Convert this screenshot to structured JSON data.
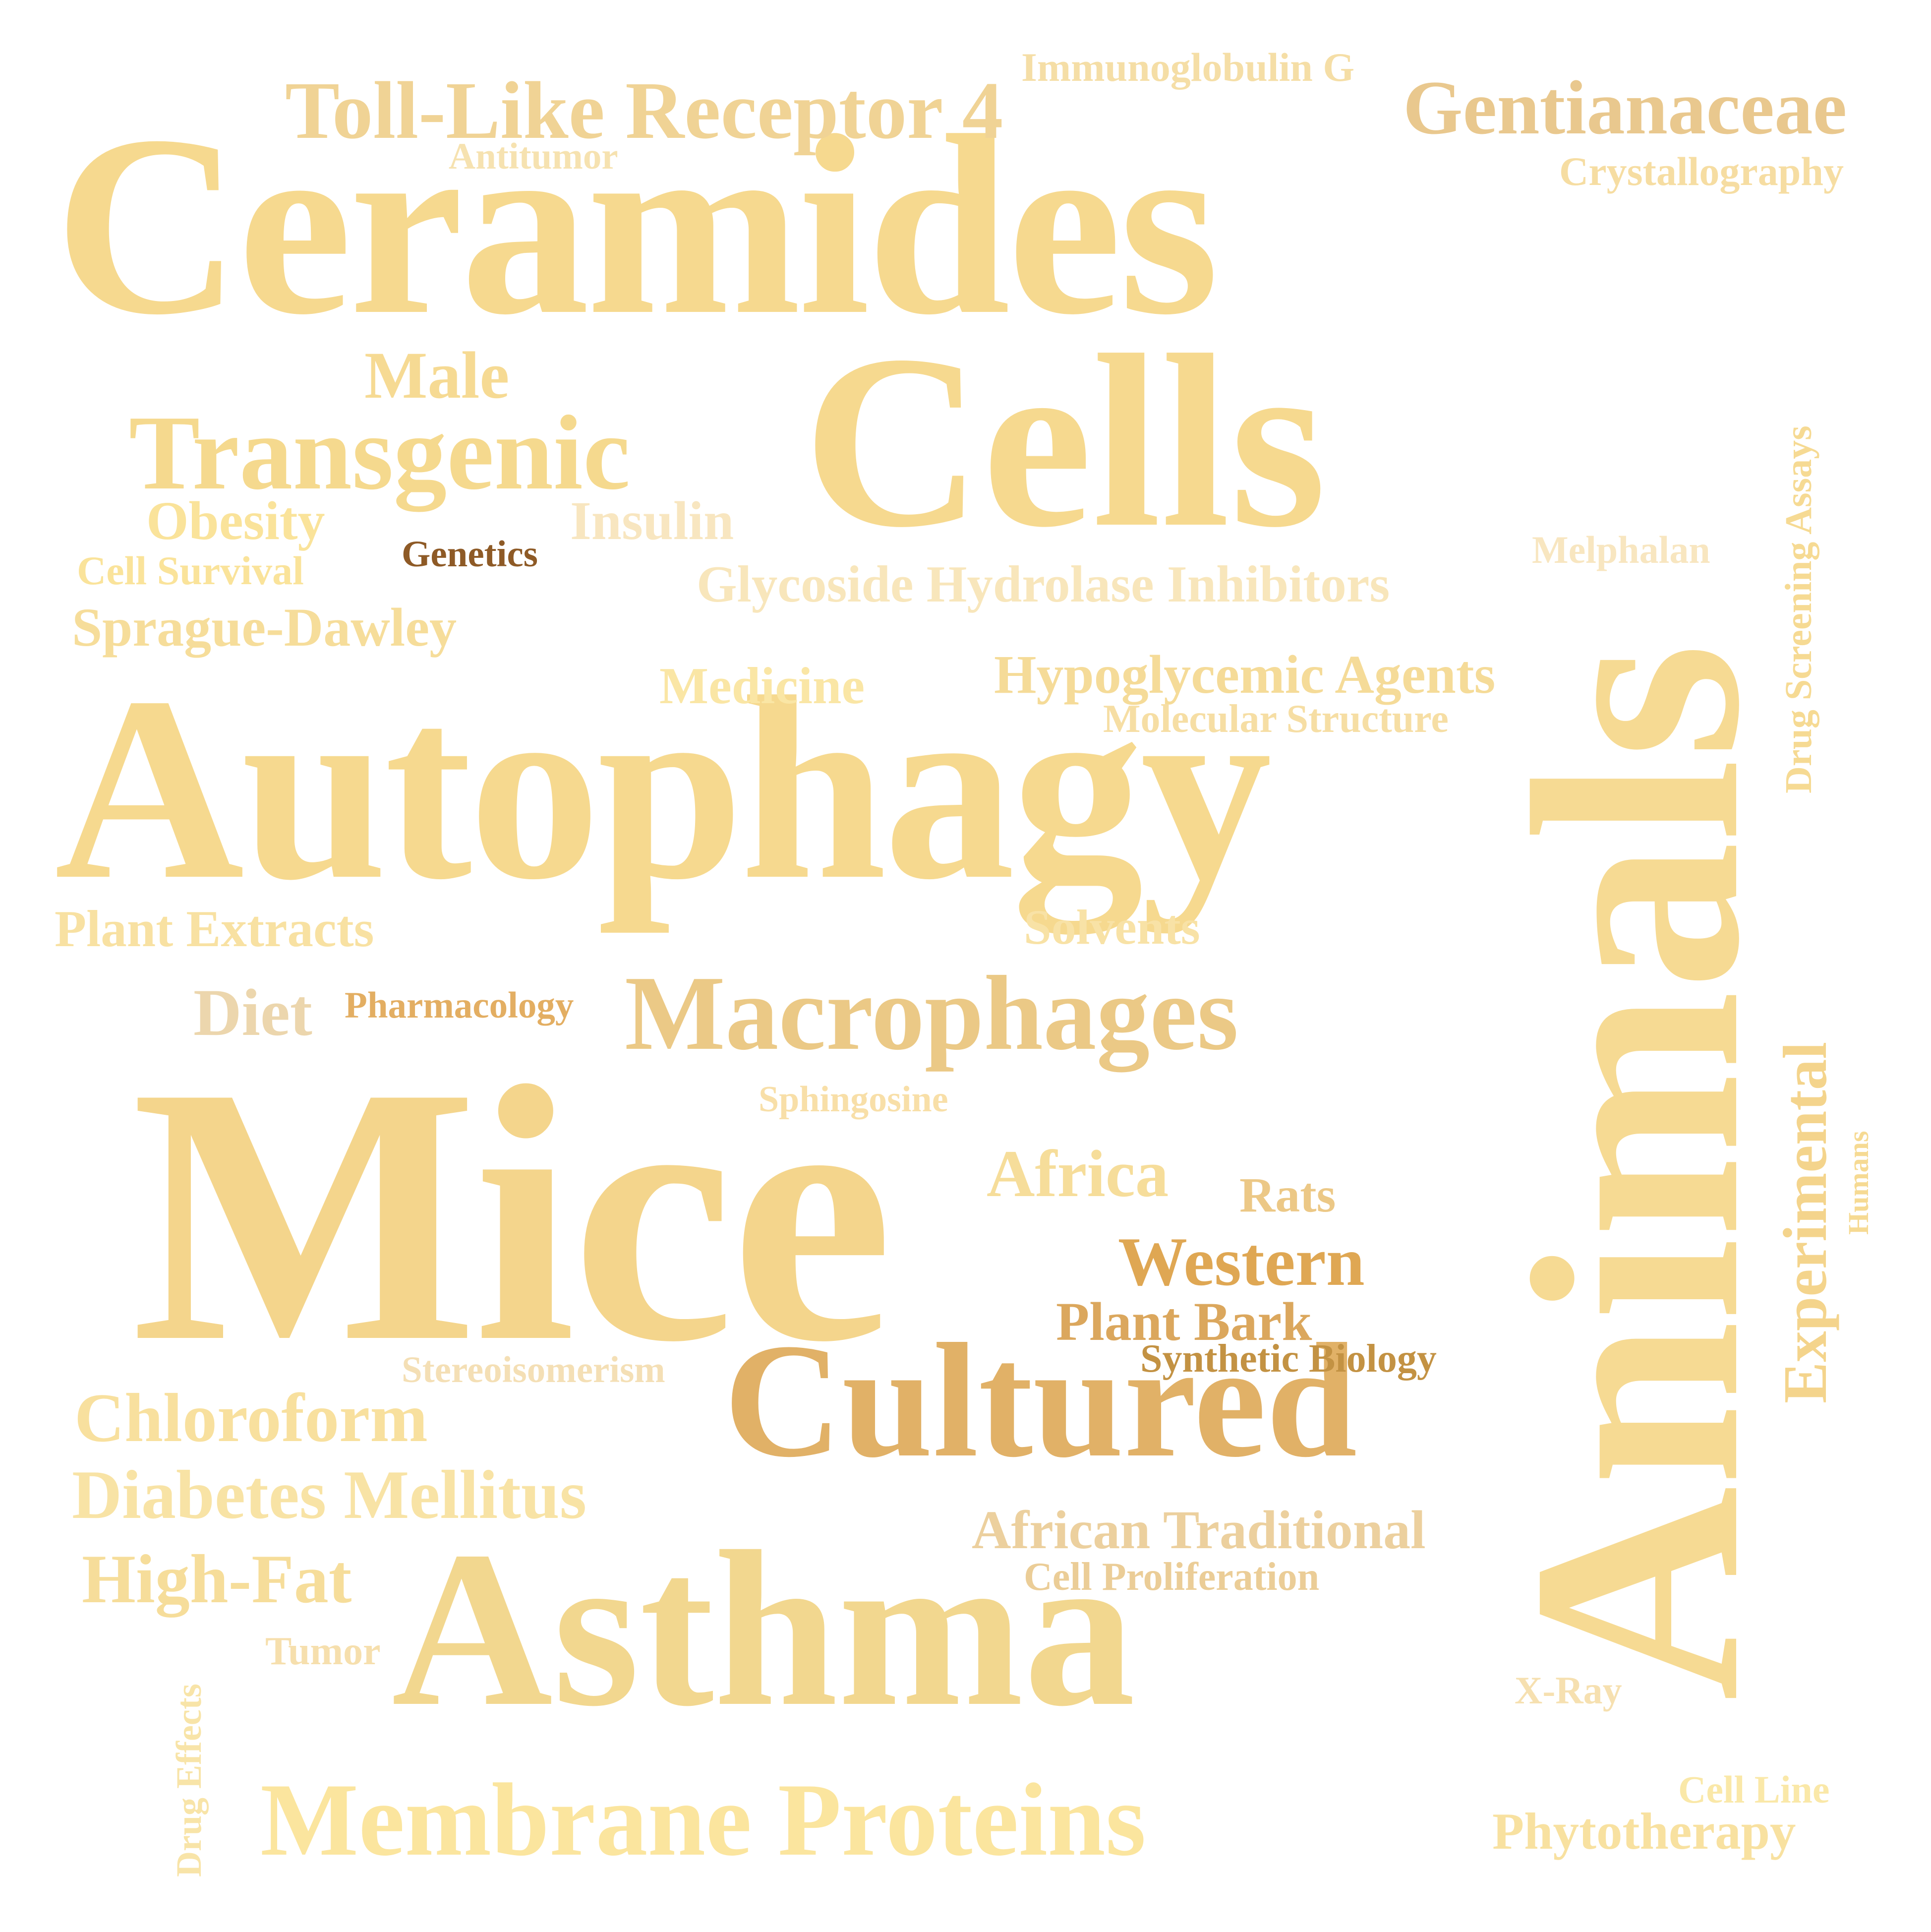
{
  "words": {
    "ceramides": {
      "text": "Ceramides",
      "color": "#f6d98f"
    },
    "cells": {
      "text": "Cells",
      "color": "#f6d98f"
    },
    "autophagy": {
      "text": "Autophagy",
      "color": "#f6d98f"
    },
    "mice": {
      "text": "Mice",
      "color": "#f4d58c"
    },
    "asthma": {
      "text": "Asthma",
      "color": "#f2d78f"
    },
    "cultured": {
      "text": "Cultured",
      "color": "#e1b167"
    },
    "macrophages": {
      "text": "Macrophages",
      "color": "#ebc986"
    },
    "animals": {
      "text": "Animals",
      "color": "#f6da93"
    },
    "experimental": {
      "text": "Experimental",
      "color": "#f4d48c"
    },
    "drugscreen": {
      "text": "Drug Screening Assays",
      "color": "#f6da93"
    },
    "humans": {
      "text": "Humans",
      "color": "#f6da93"
    },
    "drugeffects": {
      "text": "Drug Effects",
      "color": "#f8e4a8"
    },
    "tlr4": {
      "text": "Toll-Like Receptor 4",
      "color": "#f0d395"
    },
    "antitumor": {
      "text": "Antitumor",
      "color": "#f6e2b0"
    },
    "igg": {
      "text": "Immunoglobulin G",
      "color": "#f5dea6"
    },
    "gentian": {
      "text": "Gentianaceae",
      "color": "#e9c88e"
    },
    "crystal": {
      "text": "Crystallography",
      "color": "#f6dda2"
    },
    "male": {
      "text": "Male",
      "color": "#f6da93"
    },
    "transgenic": {
      "text": "Transgenic",
      "color": "#f5d98e"
    },
    "obesity": {
      "text": "Obesity",
      "color": "#fae39a"
    },
    "insulin": {
      "text": "Insulin",
      "color": "#f8e6c0"
    },
    "cellsurv": {
      "text": "Cell Survival",
      "color": "#fae39a"
    },
    "genetics": {
      "text": "Genetics",
      "color": "#8e5a26"
    },
    "melphalan": {
      "text": "Melphalan",
      "color": "#f8e6c0"
    },
    "glycoside": {
      "text": "Glycoside Hydrolase Inhibitors",
      "color": "#f8e6bb"
    },
    "sprague": {
      "text": "Sprague-Dawley",
      "color": "#f6dd9a"
    },
    "medicine": {
      "text": "Medicine",
      "color": "#fae6a5"
    },
    "hypogly": {
      "text": "Hypoglycemic Agents",
      "color": "#f5db98"
    },
    "molstruct": {
      "text": "Molecular Structure",
      "color": "#f6dea4"
    },
    "plantext": {
      "text": "Plant Extracts",
      "color": "#f8e1a2"
    },
    "solvents": {
      "text": "Solvents",
      "color": "#f8e2a6"
    },
    "diet": {
      "text": "Diet",
      "color": "#ecd6ad"
    },
    "pharma": {
      "text": "Pharmacology",
      "color": "#e3ae62"
    },
    "sphingo": {
      "text": "Sphingosine",
      "color": "#f8dfa8"
    },
    "africa": {
      "text": "Africa",
      "color": "#f6dd9a"
    },
    "rats": {
      "text": "Rats",
      "color": "#ecc886"
    },
    "western": {
      "text": "Western",
      "color": "#dfa753"
    },
    "plantbark": {
      "text": "Plant Bark",
      "color": "#dba75d"
    },
    "synbio": {
      "text": "Synthetic Biology",
      "color": "#c39243"
    },
    "stereo": {
      "text": "Stereoisomerism",
      "color": "#f4dfb5"
    },
    "chloroform": {
      "text": "Chloroform",
      "color": "#f8e09e"
    },
    "diabetes": {
      "text": "Diabetes Mellitus",
      "color": "#f8e3a5"
    },
    "afrtrad": {
      "text": "African Traditional",
      "color": "#ecd09e"
    },
    "highfat": {
      "text": "High-Fat",
      "color": "#f6dd9a"
    },
    "cellprolif": {
      "text": "Cell Proliferation",
      "color": "#ebcd97"
    },
    "tumor": {
      "text": "Tumor",
      "color": "#f6dfad"
    },
    "xray": {
      "text": "X-Ray",
      "color": "#f6e0b0"
    },
    "membrane": {
      "text": "Membrane Proteins",
      "color": "#fbe59e"
    },
    "cellline": {
      "text": "Cell Line",
      "color": "#fae8a8"
    },
    "phyto": {
      "text": "Phytotherapy",
      "color": "#f8e1a0"
    }
  }
}
